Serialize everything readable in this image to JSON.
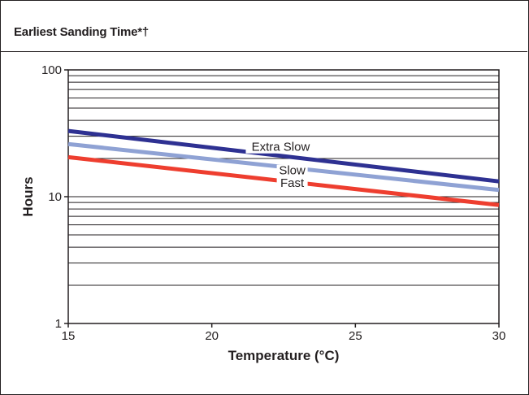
{
  "header": {
    "title": "Earliest Sanding Time*†"
  },
  "chart_data": {
    "type": "line",
    "title": "Earliest Sanding Time*†",
    "xlabel": "Temperature (°C)",
    "ylabel": "Hours",
    "xlim": [
      15,
      30
    ],
    "ylim": [
      1,
      100
    ],
    "yscale": "log",
    "x_ticks": [
      "15",
      "20",
      "25",
      "30"
    ],
    "y_ticks": [
      "1",
      "10",
      "100"
    ],
    "grid": "horizontal minor log gridlines",
    "series": [
      {
        "name": "Extra Slow",
        "color": "#2e3192",
        "x": [
          15,
          30
        ],
        "y": [
          33,
          13.2
        ]
      },
      {
        "name": "Slow",
        "color": "#8fa2d4",
        "x": [
          15,
          30
        ],
        "y": [
          26,
          11.3
        ]
      },
      {
        "name": "Fast",
        "color": "#ee3e2f",
        "x": [
          15,
          30
        ],
        "y": [
          20.5,
          8.6
        ]
      }
    ]
  }
}
